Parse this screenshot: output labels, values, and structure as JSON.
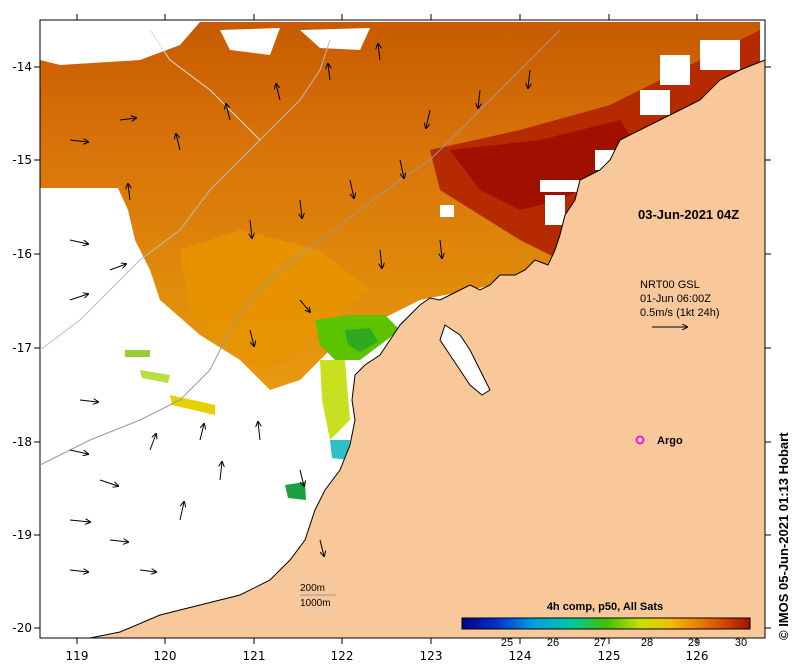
{
  "map": {
    "timestamp": "03-Jun-2021 04Z",
    "current_info": {
      "line1": "NRT00 GSL",
      "line2": "01-Jun 06:00Z",
      "line3": "0.5m/s (1kt 24h)"
    },
    "argo_label": "Argo",
    "depth_labels": [
      "200m",
      "1000m"
    ],
    "credit": "© IMOS 05-Jun-2021 01:13 Hobart",
    "colorbar": {
      "title": "4h comp, p50, All Sats",
      "ticks": [
        "25",
        "26",
        "27",
        "28",
        "29",
        "30"
      ]
    },
    "x_axis": [
      "119",
      "120",
      "121",
      "122",
      "123",
      "124",
      "125",
      "126"
    ],
    "y_axis": [
      "-14",
      "-15",
      "-16",
      "-17",
      "-18",
      "-19",
      "-20"
    ],
    "colors": {
      "land": "#f9c89a",
      "sst_hot": "#a31000",
      "sst_warm": "#d96a00",
      "sst_mid": "#e89400",
      "sst_green": "#5cc300",
      "argo": "#e020e0"
    }
  }
}
